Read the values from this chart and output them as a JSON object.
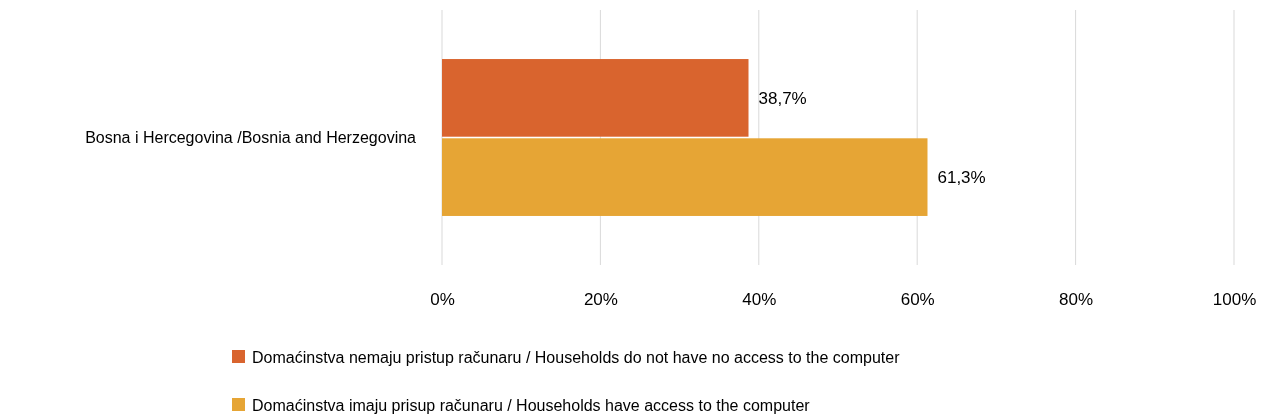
{
  "chart_data": {
    "type": "bar",
    "orientation": "horizontal",
    "categories": [
      "Bosna i Hercegovina /Bosnia and Herzegovina"
    ],
    "series": [
      {
        "name": "Domaćinstva nemaju pristup računaru / Households do not have no access to the computer",
        "color": "#d9642e",
        "values": [
          38.7
        ],
        "value_labels": [
          "38,7%"
        ]
      },
      {
        "name": "Domaćinstva imaju prisup računaru / Households have access to the computer",
        "color": "#e6a535",
        "values": [
          61.3
        ],
        "value_labels": [
          "61,3%"
        ]
      }
    ],
    "xlim": [
      0,
      100
    ],
    "xticks": [
      {
        "value": 0,
        "label": "0%"
      },
      {
        "value": 20,
        "label": "20%"
      },
      {
        "value": 40,
        "label": "40%"
      },
      {
        "value": 60,
        "label": "60%"
      },
      {
        "value": 80,
        "label": "80%"
      },
      {
        "value": 100,
        "label": "100%"
      }
    ],
    "grid": "x",
    "legend": "bottom"
  }
}
